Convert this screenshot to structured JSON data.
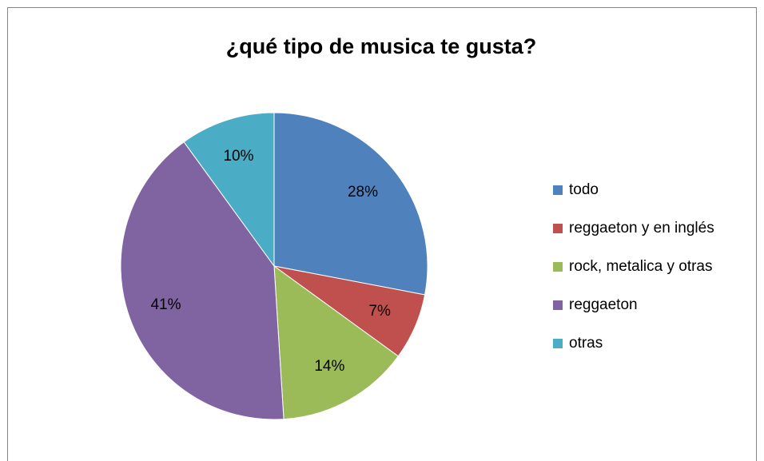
{
  "chart_data": {
    "type": "pie",
    "title": "¿qué tipo de musica te gusta?",
    "categories": [
      "todo",
      "reggaeton y en inglés",
      "rock, metalica y otras",
      "reggaeton",
      "otras"
    ],
    "values": [
      28,
      7,
      14,
      41,
      10
    ],
    "value_labels": [
      "28%",
      "7%",
      "14%",
      "41%",
      "10%"
    ],
    "colors": [
      "#4f81bd",
      "#c0504d",
      "#9bbb59",
      "#8064a2",
      "#4bacc6"
    ],
    "legend": "right"
  }
}
